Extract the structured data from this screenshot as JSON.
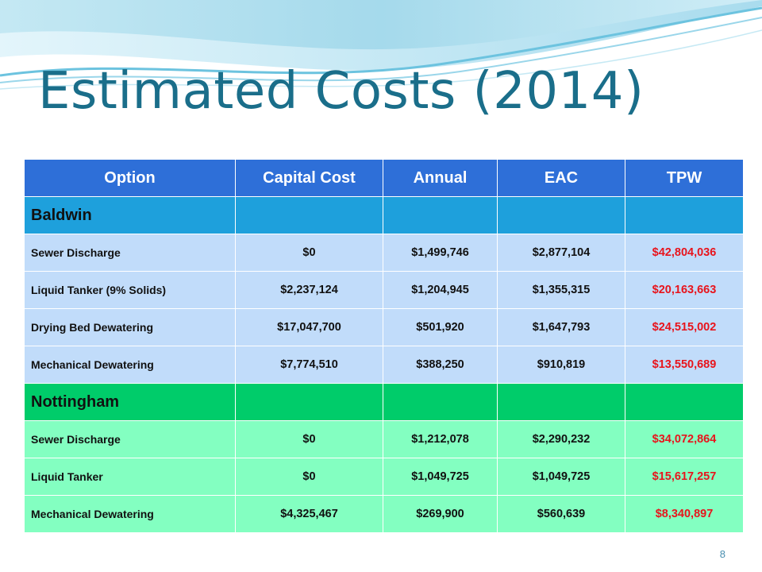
{
  "slide": {
    "title": "Estimated Costs (2014)",
    "page_number": "8"
  },
  "table": {
    "headers": [
      "Option",
      "Capital Cost",
      "Annual",
      "EAC",
      "TPW"
    ],
    "groups": [
      {
        "name": "Baldwin",
        "rows": [
          {
            "option": "Sewer Discharge",
            "capital": "$0",
            "annual": "$1,499,746",
            "eac": "$2,877,104",
            "tpw": "$42,804,036"
          },
          {
            "option": "Liquid Tanker (9% Solids)",
            "capital": "$2,237,124",
            "annual": "$1,204,945",
            "eac": "$1,355,315",
            "tpw": "$20,163,663"
          },
          {
            "option": "Drying Bed Dewatering",
            "capital": "$17,047,700",
            "annual": "$501,920",
            "eac": "$1,647,793",
            "tpw": "$24,515,002"
          },
          {
            "option": "Mechanical Dewatering",
            "capital": "$7,774,510",
            "annual": "$388,250",
            "eac": "$910,819",
            "tpw": "$13,550,689"
          }
        ]
      },
      {
        "name": "Nottingham",
        "rows": [
          {
            "option": "Sewer Discharge",
            "capital": "$0",
            "annual": "$1,212,078",
            "eac": "$2,290,232",
            "tpw": "$34,072,864"
          },
          {
            "option": "Liquid Tanker",
            "capital": "$0",
            "annual": "$1,049,725",
            "eac": "$1,049,725",
            "tpw": "$15,617,257"
          },
          {
            "option": "Mechanical Dewatering",
            "capital": "$4,325,467",
            "annual": "$269,900",
            "eac": "$560,639",
            "tpw": "$8,340,897"
          }
        ]
      }
    ]
  },
  "colors": {
    "title": "#1a6e8a",
    "header_bg": "#2e6fd8",
    "baldwin_group_bg": "#1ea0dc",
    "baldwin_row_bg": "#c1dcfa",
    "nottingham_group_bg": "#00cc6a",
    "nottingham_row_bg": "#83ffc1",
    "tpw_text": "#e8141c"
  }
}
